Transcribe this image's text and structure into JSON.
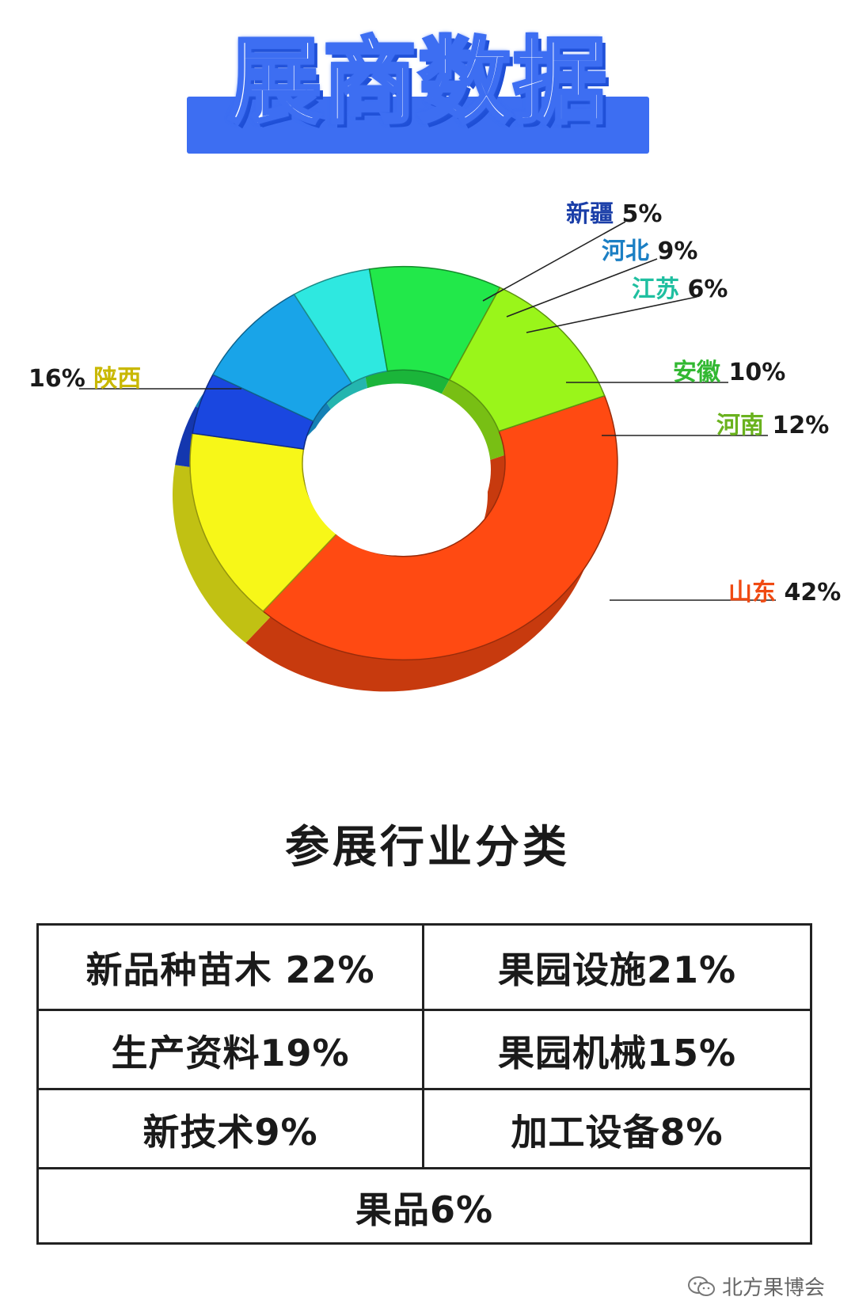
{
  "header": {
    "title": "展商数据"
  },
  "chart_data": {
    "type": "pie",
    "title": "展商数据",
    "slices": [
      {
        "label": "山东",
        "value": 42,
        "pct": "42%",
        "color": "#ff4a12"
      },
      {
        "label": "陕西",
        "value": 16,
        "pct": "16%",
        "color": "#f7f718"
      },
      {
        "label": "新疆",
        "value": 5,
        "pct": "5%",
        "color": "#1a47e0"
      },
      {
        "label": "河北",
        "value": 9,
        "pct": "9%",
        "color": "#19a4e8"
      },
      {
        "label": "江苏",
        "value": 6,
        "pct": "6%",
        "color": "#2ee8e0"
      },
      {
        "label": "安徽",
        "value": 10,
        "pct": "10%",
        "color": "#22e84a"
      },
      {
        "label": "河南",
        "value": 12,
        "pct": "12%",
        "color": "#9af51a"
      }
    ],
    "label_colors": {
      "新疆": "#1a3ea8",
      "河北": "#1b7fc4",
      "江苏": "#1fbfa0",
      "安徽": "#32b832",
      "河南": "#6ab21e",
      "山东": "#f04a12",
      "陕西": "#c9b800"
    }
  },
  "section": {
    "title": "参展行业分类"
  },
  "industries": [
    [
      "新品种苗木 22%",
      "果园设施21%"
    ],
    [
      "生产资料19%",
      "果园机械15%"
    ],
    [
      "新技术9%",
      "加工设备8%"
    ],
    [
      "果品6%"
    ]
  ],
  "watermark": {
    "text": "北方果博会",
    "icon": "wechat-icon"
  }
}
